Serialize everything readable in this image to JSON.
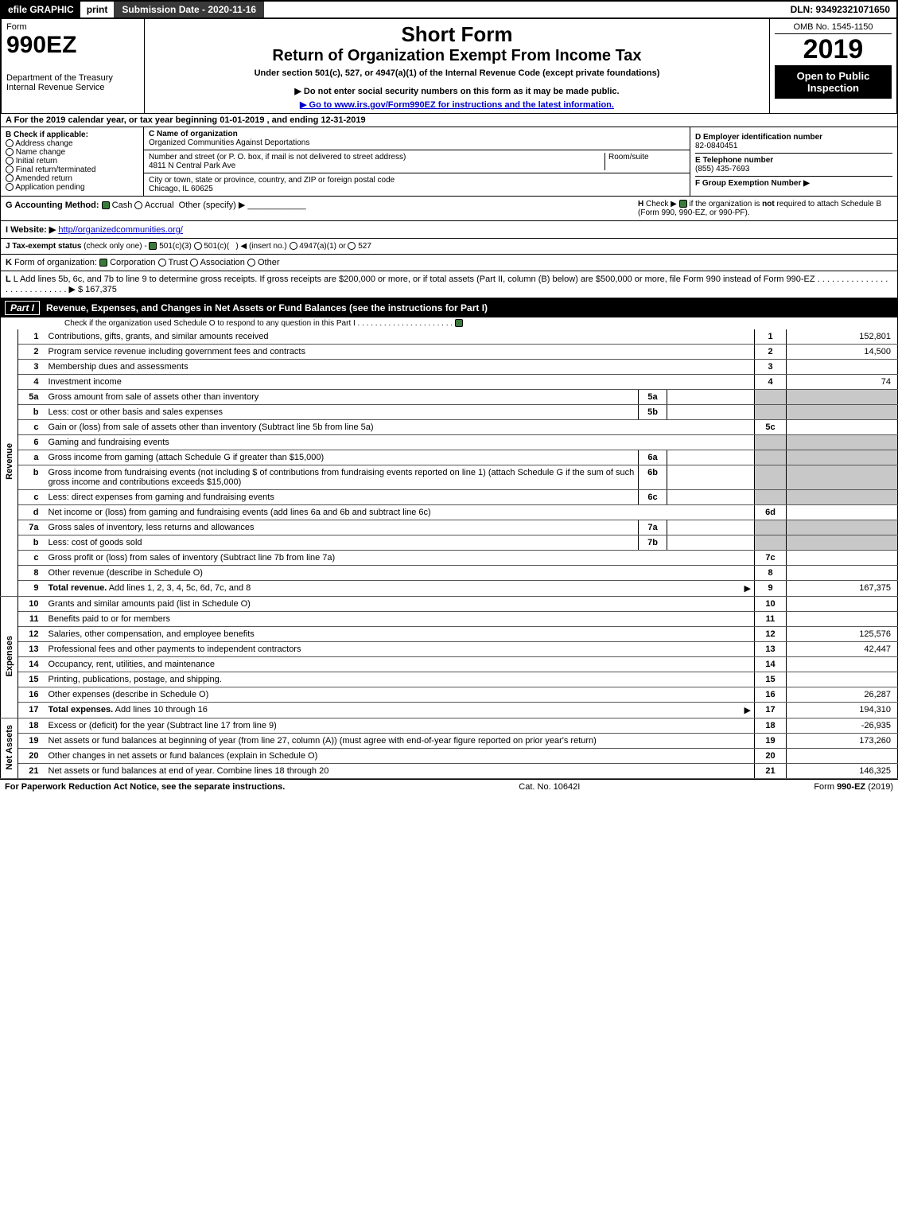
{
  "topbar": {
    "efile": "efile GRAPHIC",
    "print": "print",
    "submission_label": "Submission Date - 2020-11-16",
    "dln": "DLN: 93492321071650"
  },
  "header": {
    "form_word": "Form",
    "form_no": "990EZ",
    "dept": "Department of the Treasury",
    "irs": "Internal Revenue Service",
    "short_form": "Short Form",
    "return_title": "Return of Organization Exempt From Income Tax",
    "under": "Under section 501(c), 527, or 4947(a)(1) of the Internal Revenue Code (except private foundations)",
    "ssn_warn": "▶ Do not enter social security numbers on this form as it may be made public.",
    "goto": "▶ Go to www.irs.gov/Form990EZ for instructions and the latest information.",
    "omb": "OMB No. 1545-1150",
    "year": "2019",
    "open": "Open to Public Inspection"
  },
  "period": {
    "text": "For the 2019 calendar year, or tax year beginning 01-01-2019 , and ending 12-31-2019"
  },
  "boxB": {
    "title": "B  Check if applicable:",
    "items": [
      "Address change",
      "Name change",
      "Initial return",
      "Final return/terminated",
      "Amended return",
      "Application pending"
    ]
  },
  "boxC": {
    "name_label": "C Name of organization",
    "name": "Organized Communities Against Deportations",
    "addr_label": "Number and street (or P. O. box, if mail is not delivered to street address)",
    "addr": "4811 N Central Park Ave",
    "room_label": "Room/suite",
    "city_label": "City or town, state or province, country, and ZIP or foreign postal code",
    "city": "Chicago, IL  60625"
  },
  "boxD": {
    "ein_label": "D Employer identification number",
    "ein": "82-0840451",
    "tel_label": "E Telephone number",
    "tel": "(855) 435-7693",
    "grp_label": "F Group Exemption Number  ▶"
  },
  "rowG": {
    "label": "G Accounting Method:",
    "cash": "Cash",
    "accrual": "Accrual",
    "other": "Other (specify) ▶"
  },
  "rowH": {
    "text": "H  Check ▶      if the organization is not required to attach Schedule B (Form 990, 990-EZ, or 990-PF)."
  },
  "rowI": {
    "label": "I Website: ▶",
    "url": "http//organizedcommunities.org/"
  },
  "rowJ": {
    "text": "J Tax-exempt status (check only one) -      501(c)(3)      501(c)(  ) ◀ (insert no.)      4947(a)(1) or      527"
  },
  "rowK": {
    "text": "K Form of organization:       Corporation      Trust      Association      Other"
  },
  "rowL": {
    "text": "L Add lines 5b, 6c, and 7b to line 9 to determine gross receipts. If gross receipts are $200,000 or more, or if total assets (Part II, column (B) below) are $500,000 or more, file Form 990 instead of Form 990-EZ",
    "amount": "▶ $ 167,375"
  },
  "part1": {
    "label": "Part I",
    "title": "Revenue, Expenses, and Changes in Net Assets or Fund Balances (see the instructions for Part I)",
    "sub": "Check if the organization used Schedule O to respond to any question in this Part I"
  },
  "sections": {
    "revenue": "Revenue",
    "expenses": "Expenses",
    "netassets": "Net Assets"
  },
  "lines": [
    {
      "sec": "rev",
      "n": "1",
      "d": "Contributions, gifts, grants, and similar amounts received",
      "r": "1",
      "v": "152,801"
    },
    {
      "sec": "rev",
      "n": "2",
      "d": "Program service revenue including government fees and contracts",
      "r": "2",
      "v": "14,500"
    },
    {
      "sec": "rev",
      "n": "3",
      "d": "Membership dues and assessments",
      "r": "3",
      "v": ""
    },
    {
      "sec": "rev",
      "n": "4",
      "d": "Investment income",
      "r": "4",
      "v": "74"
    },
    {
      "sec": "rev",
      "n": "5a",
      "d": "Gross amount from sale of assets other than inventory",
      "mid": "5a",
      "shade": true
    },
    {
      "sec": "rev",
      "n": "b",
      "d": "Less: cost or other basis and sales expenses",
      "mid": "5b",
      "shade": true
    },
    {
      "sec": "rev",
      "n": "c",
      "d": "Gain or (loss) from sale of assets other than inventory (Subtract line 5b from line 5a)",
      "r": "5c",
      "v": ""
    },
    {
      "sec": "rev",
      "n": "6",
      "d": "Gaming and fundraising events",
      "shade": true,
      "noline": true
    },
    {
      "sec": "rev",
      "n": "a",
      "d": "Gross income from gaming (attach Schedule G if greater than $15,000)",
      "mid": "6a",
      "shade": true
    },
    {
      "sec": "rev",
      "n": "b",
      "d": "Gross income from fundraising events (not including $                    of contributions from fundraising events reported on line 1) (attach Schedule G if the sum of such gross income and contributions exceeds $15,000)",
      "mid": "6b",
      "shade": true
    },
    {
      "sec": "rev",
      "n": "c",
      "d": "Less: direct expenses from gaming and fundraising events",
      "mid": "6c",
      "shade": true
    },
    {
      "sec": "rev",
      "n": "d",
      "d": "Net income or (loss) from gaming and fundraising events (add lines 6a and 6b and subtract line 6c)",
      "r": "6d",
      "v": ""
    },
    {
      "sec": "rev",
      "n": "7a",
      "d": "Gross sales of inventory, less returns and allowances",
      "mid": "7a",
      "shade": true
    },
    {
      "sec": "rev",
      "n": "b",
      "d": "Less: cost of goods sold",
      "mid": "7b",
      "shade": true
    },
    {
      "sec": "rev",
      "n": "c",
      "d": "Gross profit or (loss) from sales of inventory (Subtract line 7b from line 7a)",
      "r": "7c",
      "v": ""
    },
    {
      "sec": "rev",
      "n": "8",
      "d": "Other revenue (describe in Schedule O)",
      "r": "8",
      "v": ""
    },
    {
      "sec": "rev",
      "n": "9",
      "d": "Total revenue. Add lines 1, 2, 3, 4, 5c, 6d, 7c, and 8",
      "r": "9",
      "v": "167,375",
      "bold": true,
      "arrow": true
    },
    {
      "sec": "exp",
      "n": "10",
      "d": "Grants and similar amounts paid (list in Schedule O)",
      "r": "10",
      "v": ""
    },
    {
      "sec": "exp",
      "n": "11",
      "d": "Benefits paid to or for members",
      "r": "11",
      "v": ""
    },
    {
      "sec": "exp",
      "n": "12",
      "d": "Salaries, other compensation, and employee benefits",
      "r": "12",
      "v": "125,576"
    },
    {
      "sec": "exp",
      "n": "13",
      "d": "Professional fees and other payments to independent contractors",
      "r": "13",
      "v": "42,447"
    },
    {
      "sec": "exp",
      "n": "14",
      "d": "Occupancy, rent, utilities, and maintenance",
      "r": "14",
      "v": ""
    },
    {
      "sec": "exp",
      "n": "15",
      "d": "Printing, publications, postage, and shipping.",
      "r": "15",
      "v": ""
    },
    {
      "sec": "exp",
      "n": "16",
      "d": "Other expenses (describe in Schedule O)",
      "r": "16",
      "v": "26,287"
    },
    {
      "sec": "exp",
      "n": "17",
      "d": "Total expenses. Add lines 10 through 16",
      "r": "17",
      "v": "194,310",
      "bold": true,
      "arrow": true
    },
    {
      "sec": "net",
      "n": "18",
      "d": "Excess or (deficit) for the year (Subtract line 17 from line 9)",
      "r": "18",
      "v": "-26,935"
    },
    {
      "sec": "net",
      "n": "19",
      "d": "Net assets or fund balances at beginning of year (from line 27, column (A)) (must agree with end-of-year figure reported on prior year's return)",
      "r": "19",
      "v": "173,260"
    },
    {
      "sec": "net",
      "n": "20",
      "d": "Other changes in net assets or fund balances (explain in Schedule O)",
      "r": "20",
      "v": ""
    },
    {
      "sec": "net",
      "n": "21",
      "d": "Net assets or fund balances at end of year. Combine lines 18 through 20",
      "r": "21",
      "v": "146,325"
    }
  ],
  "footer": {
    "left": "For Paperwork Reduction Act Notice, see the separate instructions.",
    "mid": "Cat. No. 10642I",
    "right": "Form 990-EZ (2019)"
  }
}
